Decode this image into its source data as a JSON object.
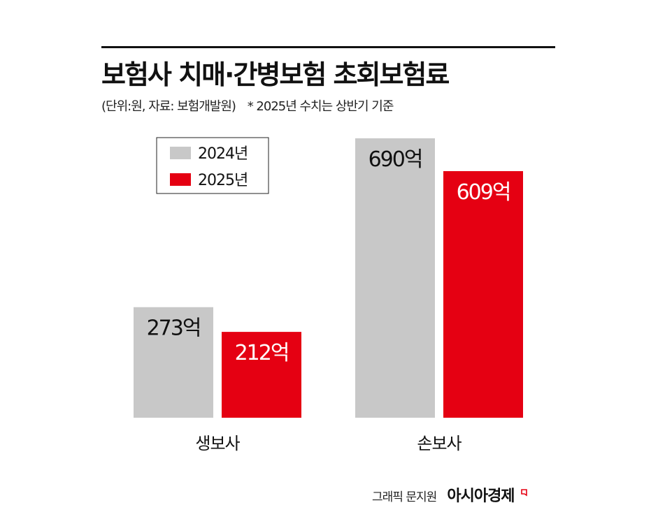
{
  "title": "보험사 치매·간병보험 초회보험료",
  "subtitle": {
    "unit_source": "(단위:원, 자료: 보험개발원)",
    "note": "* 2025년 수치는 상반기 기준"
  },
  "colors": {
    "series_2024": "#c8c8c8",
    "series_2025": "#e50012",
    "rule": "#111111"
  },
  "chart_data": {
    "type": "bar",
    "categories": [
      "생보사",
      "손보사"
    ],
    "series": [
      {
        "name": "2024년",
        "values": [
          273,
          690
        ],
        "labels": [
          "273억",
          "690억"
        ],
        "color": "#c8c8c8",
        "label_color": "#111111"
      },
      {
        "name": "2025년",
        "values": [
          212,
          609
        ],
        "labels": [
          "212억",
          "609억"
        ],
        "color": "#e50012",
        "label_color": "#ffffff"
      }
    ],
    "unit": "억",
    "ylim": [
      0,
      700
    ],
    "legend_position": "top-left",
    "grid": false
  },
  "credit": {
    "author": "그래픽 문지원",
    "brand": "아시아경제"
  }
}
